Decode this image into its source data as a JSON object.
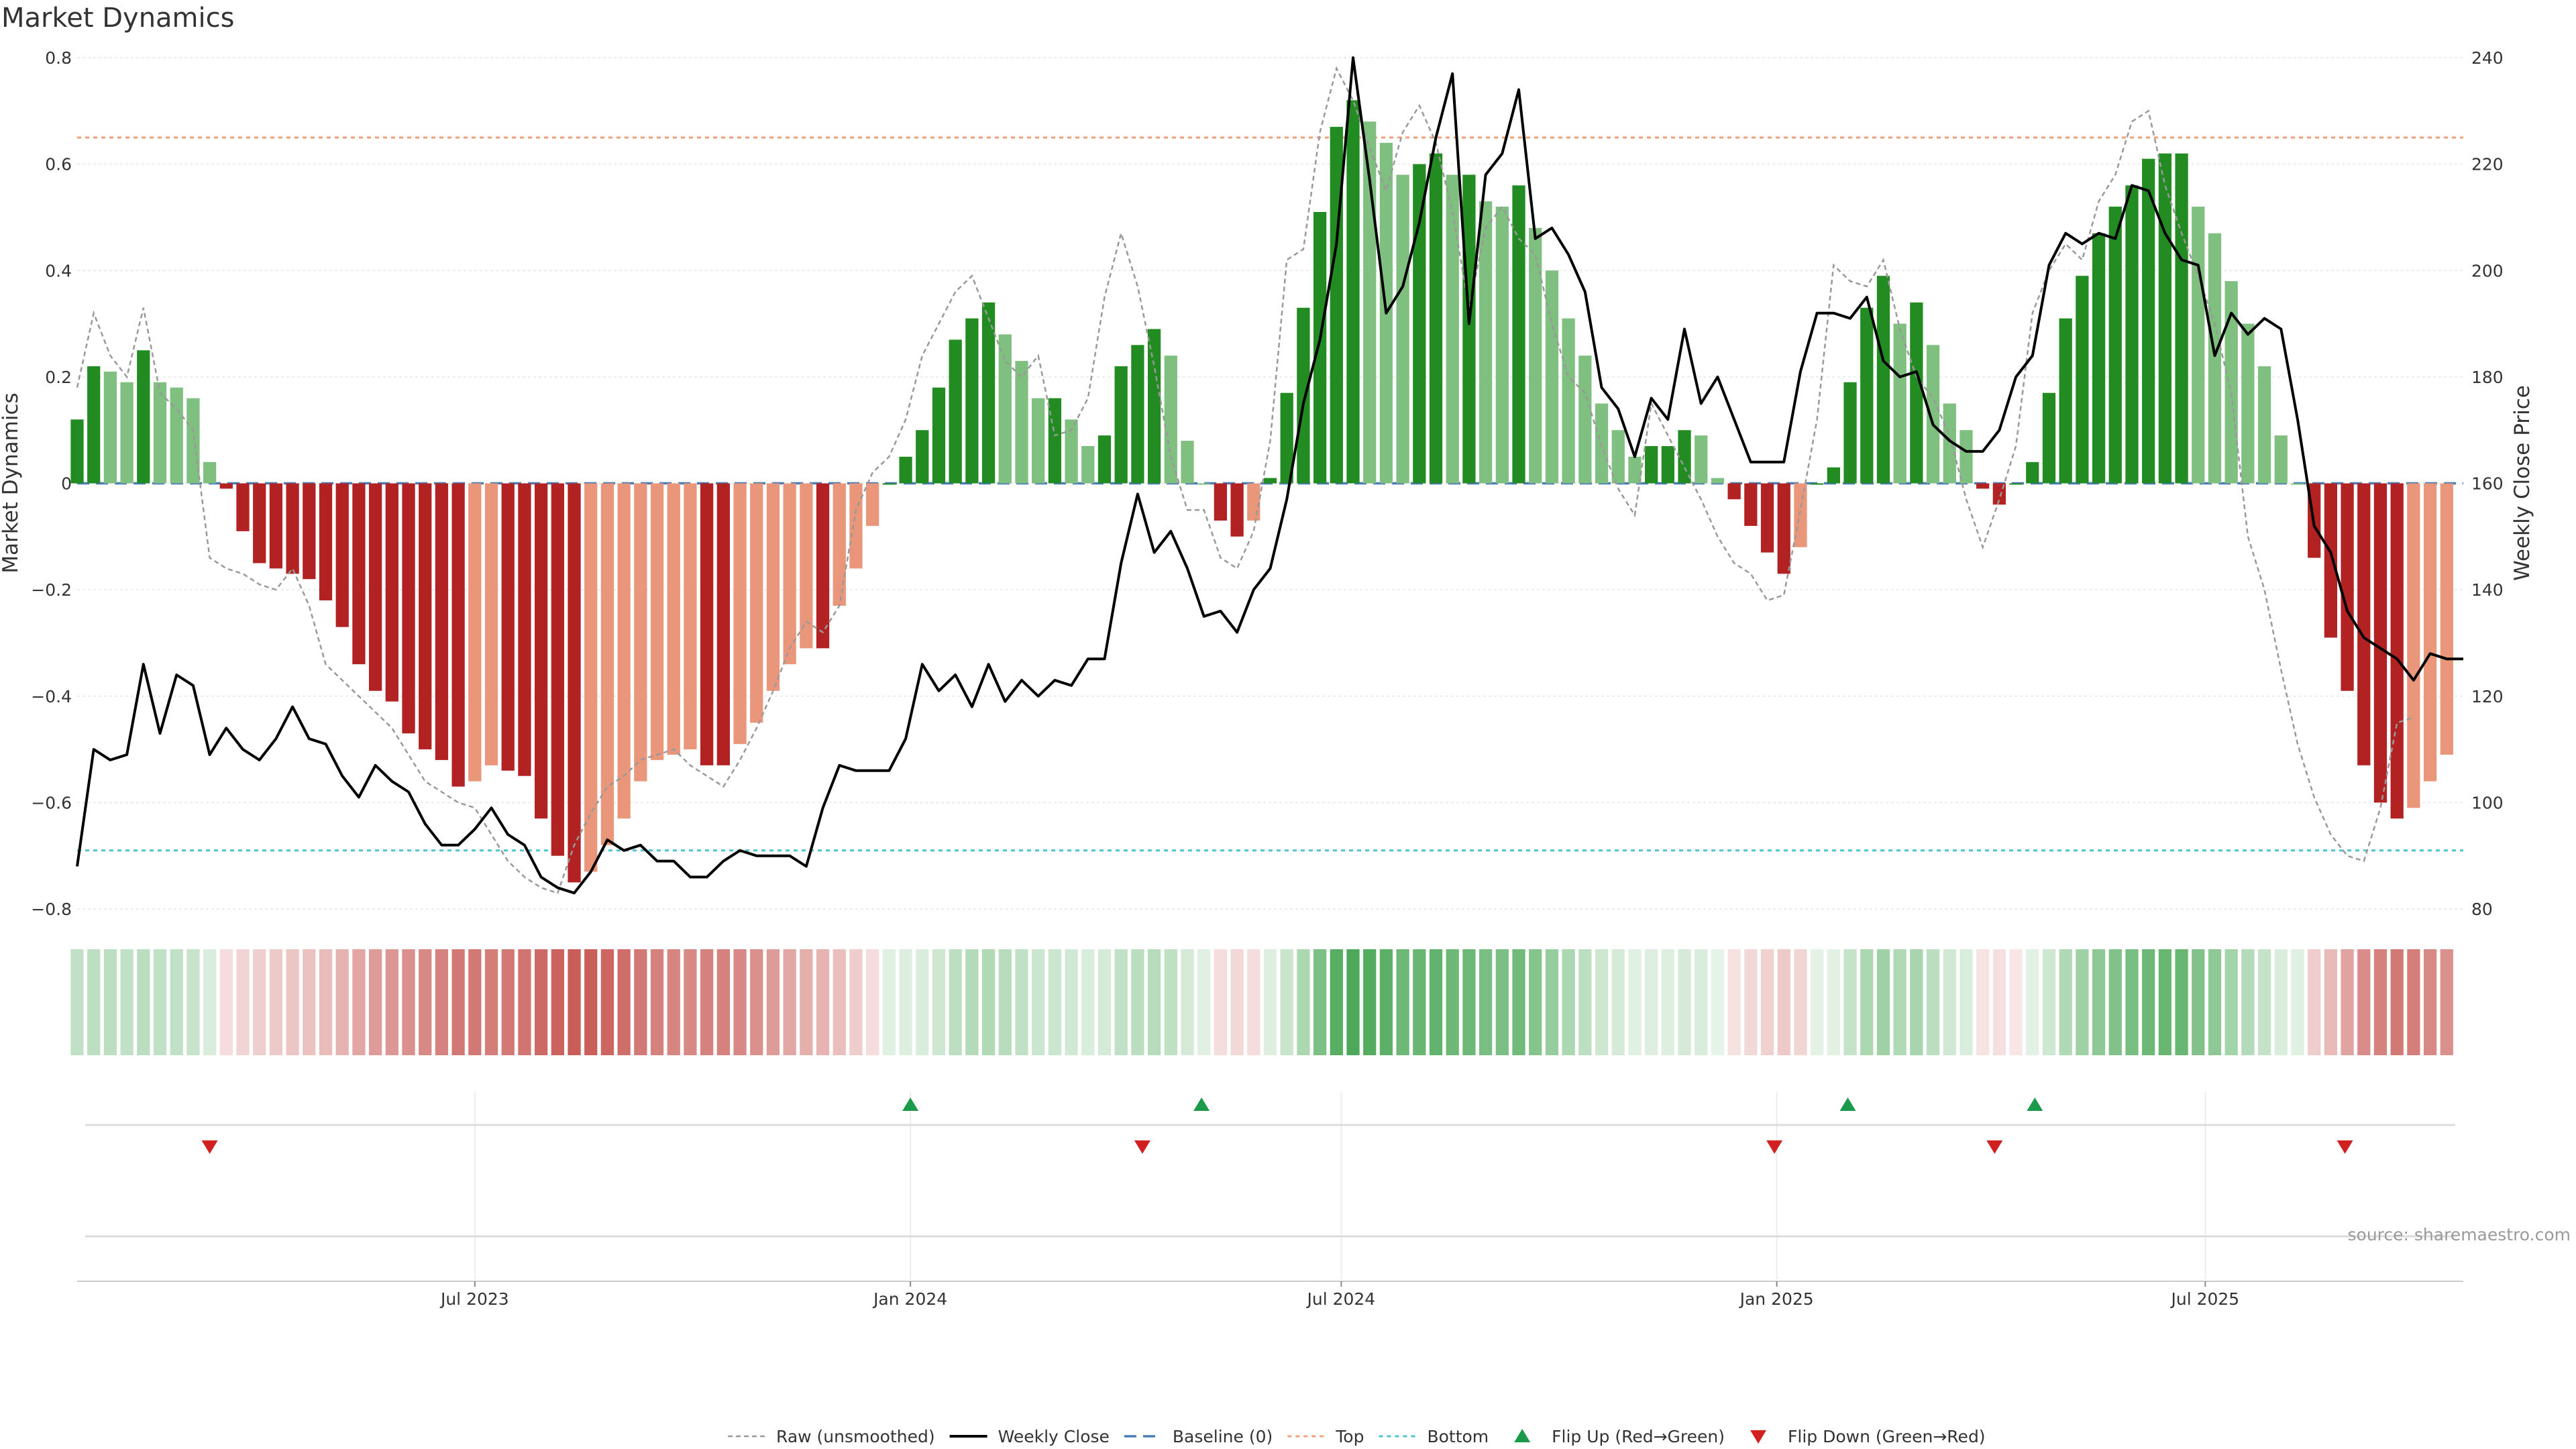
{
  "chart_data": {
    "type": "bar",
    "title": "Market Dynamics",
    "ylabel_left": "Market Dynamics",
    "ylabel_right": "Weekly Close Price",
    "source": "source: sharemaestro.com",
    "ylim_left": [
      -0.8,
      0.8
    ],
    "ylim_right": [
      80,
      240
    ],
    "left_ticks": [
      "0.8",
      "0.6",
      "0.4",
      "0.2",
      "0",
      "−0.2",
      "−0.4",
      "−0.6",
      "−0.8"
    ],
    "right_ticks": [
      "240",
      "220",
      "200",
      "180",
      "160",
      "140",
      "120",
      "100",
      "80"
    ],
    "x_range": [
      "2023-01-14",
      "2025-10-18"
    ],
    "x_ticks": [
      {
        "date": "2023-07-01",
        "label": "Jul 2023"
      },
      {
        "date": "2024-01-01",
        "label": "Jan 2024"
      },
      {
        "date": "2024-07-01",
        "label": "Jul 2024"
      },
      {
        "date": "2025-01-01",
        "label": "Jan 2025"
      },
      {
        "date": "2025-07-01",
        "label": "Jul 2025"
      }
    ],
    "grid": true,
    "legend_position": "bottom-center",
    "legend": [
      "Raw (unsmoothed)",
      "Weekly Close",
      "Baseline (0)",
      "Top",
      "Bottom",
      "Flip Up (Red→Green)",
      "Flip Down (Green→Red)"
    ],
    "top_level": 0.65,
    "bottom_level": -0.69,
    "baseline": 0,
    "colors": {
      "green_strong": "#228B22",
      "green_light": "#7fbf7f",
      "red_strong": "#b22222",
      "red_light": "#e9967a",
      "raw_line": "#999999",
      "close_line": "#000000",
      "baseline": "#4a7db8",
      "top": "#f0a07a",
      "bottom": "#4fc4d0",
      "flip_up": "#1a9a4a",
      "flip_down": "#d02020"
    },
    "start_date": "2023-01-14",
    "bars": [
      0.12,
      0.22,
      0.21,
      0.19,
      0.25,
      0.19,
      0.18,
      0.16,
      0.04,
      -0.01,
      -0.09,
      -0.15,
      -0.16,
      -0.17,
      -0.18,
      -0.22,
      -0.27,
      -0.34,
      -0.39,
      -0.41,
      -0.47,
      -0.5,
      -0.52,
      -0.57,
      -0.56,
      -0.53,
      -0.54,
      -0.55,
      -0.63,
      -0.7,
      -0.75,
      -0.73,
      -0.68,
      -0.63,
      -0.56,
      -0.52,
      -0.51,
      -0.5,
      -0.53,
      -0.53,
      -0.49,
      -0.45,
      -0.39,
      -0.34,
      -0.31,
      -0.31,
      -0.23,
      -0.16,
      -0.08,
      0.0,
      0.05,
      0.1,
      0.18,
      0.27,
      0.31,
      0.34,
      0.28,
      0.23,
      0.16,
      0.16,
      0.12,
      0.07,
      0.09,
      0.22,
      0.26,
      0.29,
      0.24,
      0.08,
      0.0,
      -0.07,
      -0.1,
      -0.07,
      0.01,
      0.17,
      0.33,
      0.51,
      0.67,
      0.72,
      0.68,
      0.64,
      0.58,
      0.6,
      0.62,
      0.58,
      0.58,
      0.53,
      0.52,
      0.56,
      0.48,
      0.4,
      0.31,
      0.24,
      0.15,
      0.1,
      0.05,
      0.07,
      0.07,
      0.1,
      0.09,
      0.01,
      -0.03,
      -0.08,
      -0.13,
      -0.17,
      -0.12,
      0.0,
      0.03,
      0.19,
      0.33,
      0.39,
      0.3,
      0.34,
      0.26,
      0.15,
      0.1,
      -0.01,
      -0.04,
      0.0,
      0.04,
      0.17,
      0.31,
      0.39,
      0.47,
      0.52,
      0.56,
      0.61,
      0.62,
      0.62,
      0.52,
      0.47,
      0.38,
      0.3,
      0.22,
      0.09,
      0.0,
      -0.14,
      -0.29,
      -0.39,
      -0.53,
      -0.6,
      -0.63,
      -0.61,
      -0.56,
      -0.51
    ],
    "raw": [
      0.18,
      0.32,
      0.24,
      0.2,
      0.33,
      0.17,
      0.14,
      0.1,
      -0.14,
      -0.16,
      -0.17,
      -0.19,
      -0.2,
      -0.16,
      -0.23,
      -0.34,
      -0.37,
      -0.4,
      -0.43,
      -0.46,
      -0.51,
      -0.56,
      -0.58,
      -0.6,
      -0.61,
      -0.66,
      -0.71,
      -0.74,
      -0.76,
      -0.77,
      -0.68,
      -0.62,
      -0.57,
      -0.55,
      -0.52,
      -0.51,
      -0.5,
      -0.53,
      -0.55,
      -0.57,
      -0.52,
      -0.46,
      -0.39,
      -0.31,
      -0.26,
      -0.28,
      -0.23,
      -0.05,
      0.02,
      0.05,
      0.12,
      0.24,
      0.3,
      0.36,
      0.39,
      0.31,
      0.23,
      0.2,
      0.24,
      0.09,
      0.1,
      0.16,
      0.35,
      0.47,
      0.37,
      0.22,
      0.05,
      -0.05,
      -0.05,
      -0.14,
      -0.16,
      -0.09,
      0.08,
      0.42,
      0.44,
      0.66,
      0.78,
      0.72,
      0.63,
      0.55,
      0.66,
      0.71,
      0.64,
      0.51,
      0.33,
      0.48,
      0.52,
      0.46,
      0.43,
      0.3,
      0.2,
      0.17,
      0.07,
      -0.01,
      -0.06,
      0.15,
      0.09,
      0.03,
      -0.03,
      -0.1,
      -0.15,
      -0.17,
      -0.22,
      -0.21,
      -0.05,
      0.12,
      0.41,
      0.38,
      0.37,
      0.42,
      0.29,
      0.2,
      0.16,
      0.09,
      -0.03,
      -0.12,
      -0.03,
      0.07,
      0.32,
      0.4,
      0.45,
      0.42,
      0.53,
      0.58,
      0.68,
      0.7,
      0.56,
      0.47,
      0.39,
      0.3,
      0.17,
      -0.1,
      -0.2,
      -0.35,
      -0.49,
      -0.59,
      -0.66,
      -0.7,
      -0.71,
      -0.61,
      -0.45,
      -0.44
    ],
    "close": [
      88,
      110,
      108,
      109,
      126,
      113,
      124,
      122,
      109,
      114,
      110,
      108,
      112,
      118,
      112,
      111,
      105,
      101,
      107,
      104,
      102,
      96,
      92,
      92,
      95,
      99,
      94,
      92,
      86,
      84,
      83,
      87,
      93,
      91,
      92,
      89,
      89,
      86,
      86,
      89,
      91,
      90,
      90,
      90,
      88,
      99,
      107,
      106,
      106,
      106,
      112,
      126,
      121,
      124,
      118,
      126,
      119,
      123,
      120,
      123,
      122,
      127,
      127,
      145,
      158,
      147,
      151,
      144,
      135,
      136,
      132,
      140,
      144,
      157,
      175,
      187,
      205,
      240,
      217,
      192,
      197,
      209,
      225,
      237,
      190,
      218,
      222,
      234,
      206,
      208,
      203,
      196,
      178,
      174,
      165,
      176,
      172,
      189,
      175,
      180,
      172,
      164,
      164,
      164,
      181,
      192,
      192,
      191,
      195,
      183,
      180,
      181,
      171,
      168,
      166,
      166,
      170,
      180,
      184,
      201,
      207,
      205,
      207,
      206,
      216,
      215,
      207,
      202,
      201,
      184,
      192,
      188,
      191,
      189,
      172,
      152,
      147,
      136,
      131,
      129,
      127,
      123,
      128,
      127,
      127
    ],
    "heat_strip": [
      {
        "dir": "up",
        "intensity": 0.3
      },
      {
        "dir": "up",
        "intensity": 0.32
      },
      {
        "dir": "up",
        "intensity": 0.32
      },
      {
        "dir": "up",
        "intensity": 0.3
      },
      {
        "dir": "up",
        "intensity": 0.33
      },
      {
        "dir": "up",
        "intensity": 0.3
      },
      {
        "dir": "up",
        "intensity": 0.3
      },
      {
        "dir": "up",
        "intensity": 0.27
      },
      {
        "dir": "up",
        "intensity": 0.18
      },
      {
        "dir": "down",
        "intensity": 0.18
      },
      {
        "dir": "down",
        "intensity": 0.22
      },
      {
        "dir": "down",
        "intensity": 0.25
      },
      {
        "dir": "down",
        "intensity": 0.28
      },
      {
        "dir": "down",
        "intensity": 0.3
      },
      {
        "dir": "down",
        "intensity": 0.32
      },
      {
        "dir": "down",
        "intensity": 0.35
      },
      {
        "dir": "down",
        "intensity": 0.4
      },
      {
        "dir": "down",
        "intensity": 0.46
      },
      {
        "dir": "down",
        "intensity": 0.52
      },
      {
        "dir": "down",
        "intensity": 0.55
      },
      {
        "dir": "down",
        "intensity": 0.58
      },
      {
        "dir": "down",
        "intensity": 0.62
      },
      {
        "dir": "down",
        "intensity": 0.65
      },
      {
        "dir": "down",
        "intensity": 0.7
      },
      {
        "dir": "down",
        "intensity": 0.7
      },
      {
        "dir": "down",
        "intensity": 0.68
      },
      {
        "dir": "down",
        "intensity": 0.7
      },
      {
        "dir": "down",
        "intensity": 0.72
      },
      {
        "dir": "down",
        "intensity": 0.78
      },
      {
        "dir": "down",
        "intensity": 0.82
      },
      {
        "dir": "down",
        "intensity": 0.85
      },
      {
        "dir": "down",
        "intensity": 0.84
      },
      {
        "dir": "down",
        "intensity": 0.8
      },
      {
        "dir": "down",
        "intensity": 0.76
      },
      {
        "dir": "down",
        "intensity": 0.7
      },
      {
        "dir": "down",
        "intensity": 0.66
      },
      {
        "dir": "down",
        "intensity": 0.64
      },
      {
        "dir": "down",
        "intensity": 0.62
      },
      {
        "dir": "down",
        "intensity": 0.66
      },
      {
        "dir": "down",
        "intensity": 0.66
      },
      {
        "dir": "down",
        "intensity": 0.62
      },
      {
        "dir": "down",
        "intensity": 0.58
      },
      {
        "dir": "down",
        "intensity": 0.52
      },
      {
        "dir": "down",
        "intensity": 0.46
      },
      {
        "dir": "down",
        "intensity": 0.42
      },
      {
        "dir": "down",
        "intensity": 0.4
      },
      {
        "dir": "down",
        "intensity": 0.34
      },
      {
        "dir": "down",
        "intensity": 0.26
      },
      {
        "dir": "down",
        "intensity": 0.18
      },
      {
        "dir": "up",
        "intensity": 0.15
      },
      {
        "dir": "up",
        "intensity": 0.16
      },
      {
        "dir": "up",
        "intensity": 0.18
      },
      {
        "dir": "up",
        "intensity": 0.24
      },
      {
        "dir": "up",
        "intensity": 0.32
      },
      {
        "dir": "up",
        "intensity": 0.36
      },
      {
        "dir": "up",
        "intensity": 0.38
      },
      {
        "dir": "up",
        "intensity": 0.34
      },
      {
        "dir": "up",
        "intensity": 0.3
      },
      {
        "dir": "up",
        "intensity": 0.25
      },
      {
        "dir": "up",
        "intensity": 0.25
      },
      {
        "dir": "up",
        "intensity": 0.22
      },
      {
        "dir": "up",
        "intensity": 0.18
      },
      {
        "dir": "up",
        "intensity": 0.2
      },
      {
        "dir": "up",
        "intensity": 0.3
      },
      {
        "dir": "up",
        "intensity": 0.33
      },
      {
        "dir": "up",
        "intensity": 0.35
      },
      {
        "dir": "up",
        "intensity": 0.31
      },
      {
        "dir": "up",
        "intensity": 0.2
      },
      {
        "dir": "up",
        "intensity": 0.15
      },
      {
        "dir": "down",
        "intensity": 0.18
      },
      {
        "dir": "down",
        "intensity": 0.2
      },
      {
        "dir": "down",
        "intensity": 0.18
      },
      {
        "dir": "up",
        "intensity": 0.16
      },
      {
        "dir": "up",
        "intensity": 0.26
      },
      {
        "dir": "up",
        "intensity": 0.4
      },
      {
        "dir": "up",
        "intensity": 0.62
      },
      {
        "dir": "up",
        "intensity": 0.8
      },
      {
        "dir": "up",
        "intensity": 0.85
      },
      {
        "dir": "up",
        "intensity": 0.82
      },
      {
        "dir": "up",
        "intensity": 0.78
      },
      {
        "dir": "up",
        "intensity": 0.7
      },
      {
        "dir": "up",
        "intensity": 0.72
      },
      {
        "dir": "up",
        "intensity": 0.75
      },
      {
        "dir": "up",
        "intensity": 0.7
      },
      {
        "dir": "up",
        "intensity": 0.7
      },
      {
        "dir": "up",
        "intensity": 0.64
      },
      {
        "dir": "up",
        "intensity": 0.63
      },
      {
        "dir": "up",
        "intensity": 0.68
      },
      {
        "dir": "up",
        "intensity": 0.58
      },
      {
        "dir": "up",
        "intensity": 0.5
      },
      {
        "dir": "up",
        "intensity": 0.4
      },
      {
        "dir": "up",
        "intensity": 0.32
      },
      {
        "dir": "up",
        "intensity": 0.24
      },
      {
        "dir": "up",
        "intensity": 0.2
      },
      {
        "dir": "up",
        "intensity": 0.15
      },
      {
        "dir": "up",
        "intensity": 0.16
      },
      {
        "dir": "up",
        "intensity": 0.16
      },
      {
        "dir": "up",
        "intensity": 0.2
      },
      {
        "dir": "up",
        "intensity": 0.18
      },
      {
        "dir": "up",
        "intensity": 0.12
      },
      {
        "dir": "down",
        "intensity": 0.15
      },
      {
        "dir": "down",
        "intensity": 0.2
      },
      {
        "dir": "down",
        "intensity": 0.24
      },
      {
        "dir": "down",
        "intensity": 0.28
      },
      {
        "dir": "down",
        "intensity": 0.22
      },
      {
        "dir": "up",
        "intensity": 0.13
      },
      {
        "dir": "up",
        "intensity": 0.14
      },
      {
        "dir": "up",
        "intensity": 0.28
      },
      {
        "dir": "up",
        "intensity": 0.4
      },
      {
        "dir": "up",
        "intensity": 0.46
      },
      {
        "dir": "up",
        "intensity": 0.38
      },
      {
        "dir": "up",
        "intensity": 0.42
      },
      {
        "dir": "up",
        "intensity": 0.33
      },
      {
        "dir": "up",
        "intensity": 0.22
      },
      {
        "dir": "up",
        "intensity": 0.18
      },
      {
        "dir": "down",
        "intensity": 0.14
      },
      {
        "dir": "down",
        "intensity": 0.16
      },
      {
        "dir": "down",
        "intensity": 0.13
      },
      {
        "dir": "up",
        "intensity": 0.14
      },
      {
        "dir": "up",
        "intensity": 0.24
      },
      {
        "dir": "up",
        "intensity": 0.38
      },
      {
        "dir": "up",
        "intensity": 0.46
      },
      {
        "dir": "up",
        "intensity": 0.54
      },
      {
        "dir": "up",
        "intensity": 0.6
      },
      {
        "dir": "up",
        "intensity": 0.64
      },
      {
        "dir": "up",
        "intensity": 0.7
      },
      {
        "dir": "up",
        "intensity": 0.72
      },
      {
        "dir": "up",
        "intensity": 0.72
      },
      {
        "dir": "up",
        "intensity": 0.6
      },
      {
        "dir": "up",
        "intensity": 0.54
      },
      {
        "dir": "up",
        "intensity": 0.44
      },
      {
        "dir": "up",
        "intensity": 0.36
      },
      {
        "dir": "up",
        "intensity": 0.28
      },
      {
        "dir": "up",
        "intensity": 0.18
      },
      {
        "dir": "up",
        "intensity": 0.15
      },
      {
        "dir": "down",
        "intensity": 0.26
      },
      {
        "dir": "down",
        "intensity": 0.36
      },
      {
        "dir": "down",
        "intensity": 0.48
      },
      {
        "dir": "down",
        "intensity": 0.6
      },
      {
        "dir": "down",
        "intensity": 0.66
      },
      {
        "dir": "down",
        "intensity": 0.7
      },
      {
        "dir": "down",
        "intensity": 0.68
      },
      {
        "dir": "down",
        "intensity": 0.62
      },
      {
        "dir": "down",
        "intensity": 0.58
      }
    ],
    "flips": [
      {
        "type": "down",
        "date": "2023-03-11"
      },
      {
        "type": "up",
        "date": "2024-01-01"
      },
      {
        "type": "down",
        "date": "2024-04-08"
      },
      {
        "type": "up",
        "date": "2024-05-03"
      },
      {
        "type": "down",
        "date": "2024-12-31"
      },
      {
        "type": "up",
        "date": "2025-01-31"
      },
      {
        "type": "down",
        "date": "2025-04-03"
      },
      {
        "type": "up",
        "date": "2025-04-20"
      },
      {
        "type": "down",
        "date": "2025-08-29"
      }
    ]
  }
}
